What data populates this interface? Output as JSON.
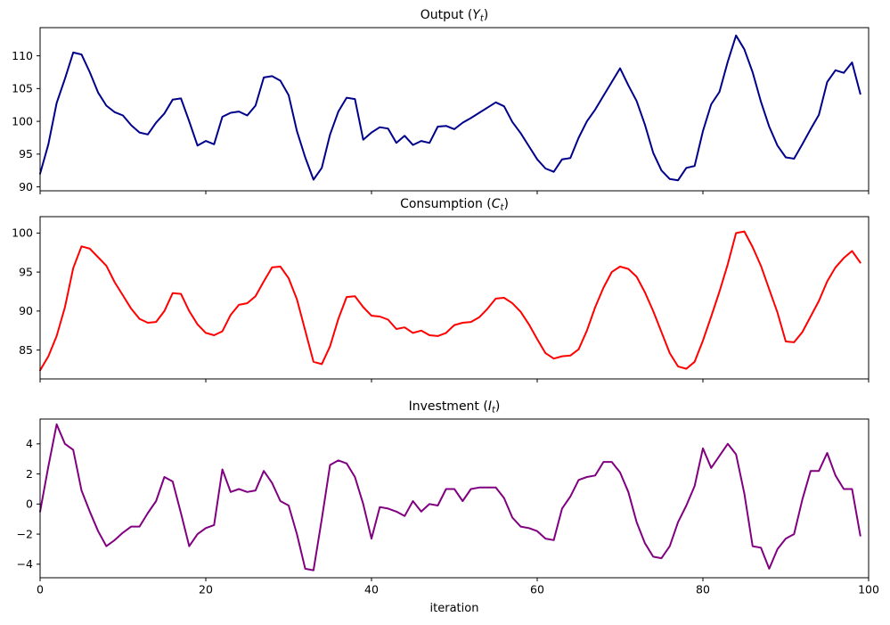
{
  "figure": {
    "xlabel": "iteration",
    "xlim": [
      0,
      100
    ],
    "x_ticks": [
      0,
      20,
      40,
      60,
      80,
      100
    ],
    "background": "#ffffff",
    "axis_color": "#000000",
    "grid": false,
    "legend": false
  },
  "chart_data": [
    {
      "type": "line",
      "series_name": "output",
      "title": {
        "prefix": "Output (",
        "variable": "Y",
        "subscript": "t",
        "suffix": ")"
      },
      "color": "#00008B",
      "x_start": 0,
      "x_step": 1,
      "ylim": [
        89.4,
        114.3
      ],
      "y_ticks": [
        90,
        95,
        100,
        105,
        110
      ],
      "values": [
        92.0,
        96.5,
        102.8,
        106.5,
        110.5,
        110.2,
        107.5,
        104.4,
        102.4,
        101.4,
        100.9,
        99.4,
        98.3,
        98.0,
        99.8,
        101.2,
        103.3,
        103.5,
        100.0,
        96.3,
        97.0,
        96.5,
        100.7,
        101.3,
        101.5,
        100.9,
        102.4,
        106.7,
        106.9,
        106.2,
        104.0,
        98.5,
        94.5,
        91.1,
        92.9,
        98.0,
        101.5,
        103.6,
        103.4,
        97.2,
        98.3,
        99.1,
        98.9,
        96.7,
        97.8,
        96.4,
        97.0,
        96.7,
        99.2,
        99.3,
        98.8,
        99.8,
        100.5,
        101.3,
        102.1,
        102.9,
        102.3,
        99.9,
        98.2,
        96.2,
        94.2,
        92.8,
        92.3,
        94.2,
        94.4,
        97.5,
        100.0,
        101.8,
        103.9,
        106.0,
        108.1,
        105.5,
        103.1,
        99.5,
        95.2,
        92.5,
        91.2,
        91.0,
        92.9,
        93.2,
        98.5,
        102.6,
        104.5,
        109.1,
        113.1,
        111.0,
        107.5,
        103.0,
        99.2,
        96.3,
        94.5,
        94.3,
        96.5,
        98.8,
        101.0,
        106.0,
        107.8,
        107.4,
        109.0,
        104.2
      ]
    },
    {
      "type": "line",
      "series_name": "consumption",
      "title": {
        "prefix": "Consumption (",
        "variable": "C",
        "subscript": "t",
        "suffix": ")"
      },
      "color": "#FF0000",
      "x_start": 0,
      "x_step": 1,
      "ylim": [
        81.3,
        102.1
      ],
      "y_ticks": [
        85,
        90,
        95,
        100
      ],
      "values": [
        82.4,
        84.2,
        86.8,
        90.5,
        95.5,
        98.3,
        98.0,
        96.9,
        95.8,
        93.7,
        92.0,
        90.3,
        89.0,
        88.5,
        88.6,
        90.0,
        92.3,
        92.2,
        90.0,
        88.3,
        87.2,
        86.9,
        87.4,
        89.5,
        90.8,
        91.0,
        91.9,
        93.8,
        95.6,
        95.7,
        94.2,
        91.5,
        87.5,
        83.5,
        83.2,
        85.5,
        89.0,
        91.8,
        91.9,
        90.5,
        89.4,
        89.3,
        88.9,
        87.7,
        87.9,
        87.2,
        87.5,
        86.9,
        86.8,
        87.2,
        88.2,
        88.5,
        88.6,
        89.2,
        90.3,
        91.6,
        91.7,
        91.0,
        89.9,
        88.3,
        86.4,
        84.6,
        83.9,
        84.2,
        84.3,
        85.1,
        87.5,
        90.5,
        93.0,
        95.0,
        95.7,
        95.4,
        94.4,
        92.4,
        90.0,
        87.3,
        84.6,
        82.9,
        82.6,
        83.5,
        86.2,
        89.3,
        92.5,
        96.0,
        100.0,
        100.2,
        98.2,
        95.8,
        92.8,
        89.8,
        86.1,
        86.0,
        87.3,
        89.3,
        91.3,
        93.8,
        95.6,
        96.8,
        97.7,
        96.2
      ]
    },
    {
      "type": "line",
      "series_name": "investment",
      "title": {
        "prefix": "Investment (",
        "variable": "I",
        "subscript": "t",
        "suffix": ")"
      },
      "color": "#800080",
      "x_start": 0,
      "x_step": 1,
      "ylim": [
        -4.9,
        5.65
      ],
      "y_ticks": [
        -4,
        -2,
        0,
        2,
        4
      ],
      "values": [
        -0.5,
        2.5,
        5.3,
        4.0,
        3.6,
        0.9,
        -0.5,
        -1.8,
        -2.8,
        -2.4,
        -1.9,
        -1.5,
        -1.5,
        -0.6,
        0.2,
        1.8,
        1.5,
        -0.6,
        -2.8,
        -2.0,
        -1.6,
        -1.4,
        2.3,
        0.8,
        1.0,
        0.8,
        0.9,
        2.2,
        1.4,
        0.2,
        -0.1,
        -2.0,
        -4.3,
        -4.4,
        -1.0,
        2.6,
        2.9,
        2.7,
        1.8,
        0.0,
        -2.3,
        -0.2,
        -0.3,
        -0.5,
        -0.8,
        0.2,
        -0.5,
        0.0,
        -0.1,
        1.0,
        1.0,
        0.2,
        1.0,
        1.1,
        1.1,
        1.1,
        0.4,
        -0.9,
        -1.5,
        -1.6,
        -1.8,
        -2.3,
        -2.4,
        -0.3,
        0.5,
        1.6,
        1.8,
        1.9,
        2.8,
        2.8,
        2.1,
        0.8,
        -1.2,
        -2.6,
        -3.5,
        -3.6,
        -2.8,
        -1.2,
        -0.1,
        1.2,
        3.7,
        2.4,
        3.2,
        4.0,
        3.3,
        0.7,
        -2.8,
        -2.9,
        -4.3,
        -3.0,
        -2.3,
        -2.0,
        0.3,
        2.2,
        2.2,
        3.4,
        1.9,
        1.0,
        1.0,
        -2.1
      ]
    }
  ]
}
